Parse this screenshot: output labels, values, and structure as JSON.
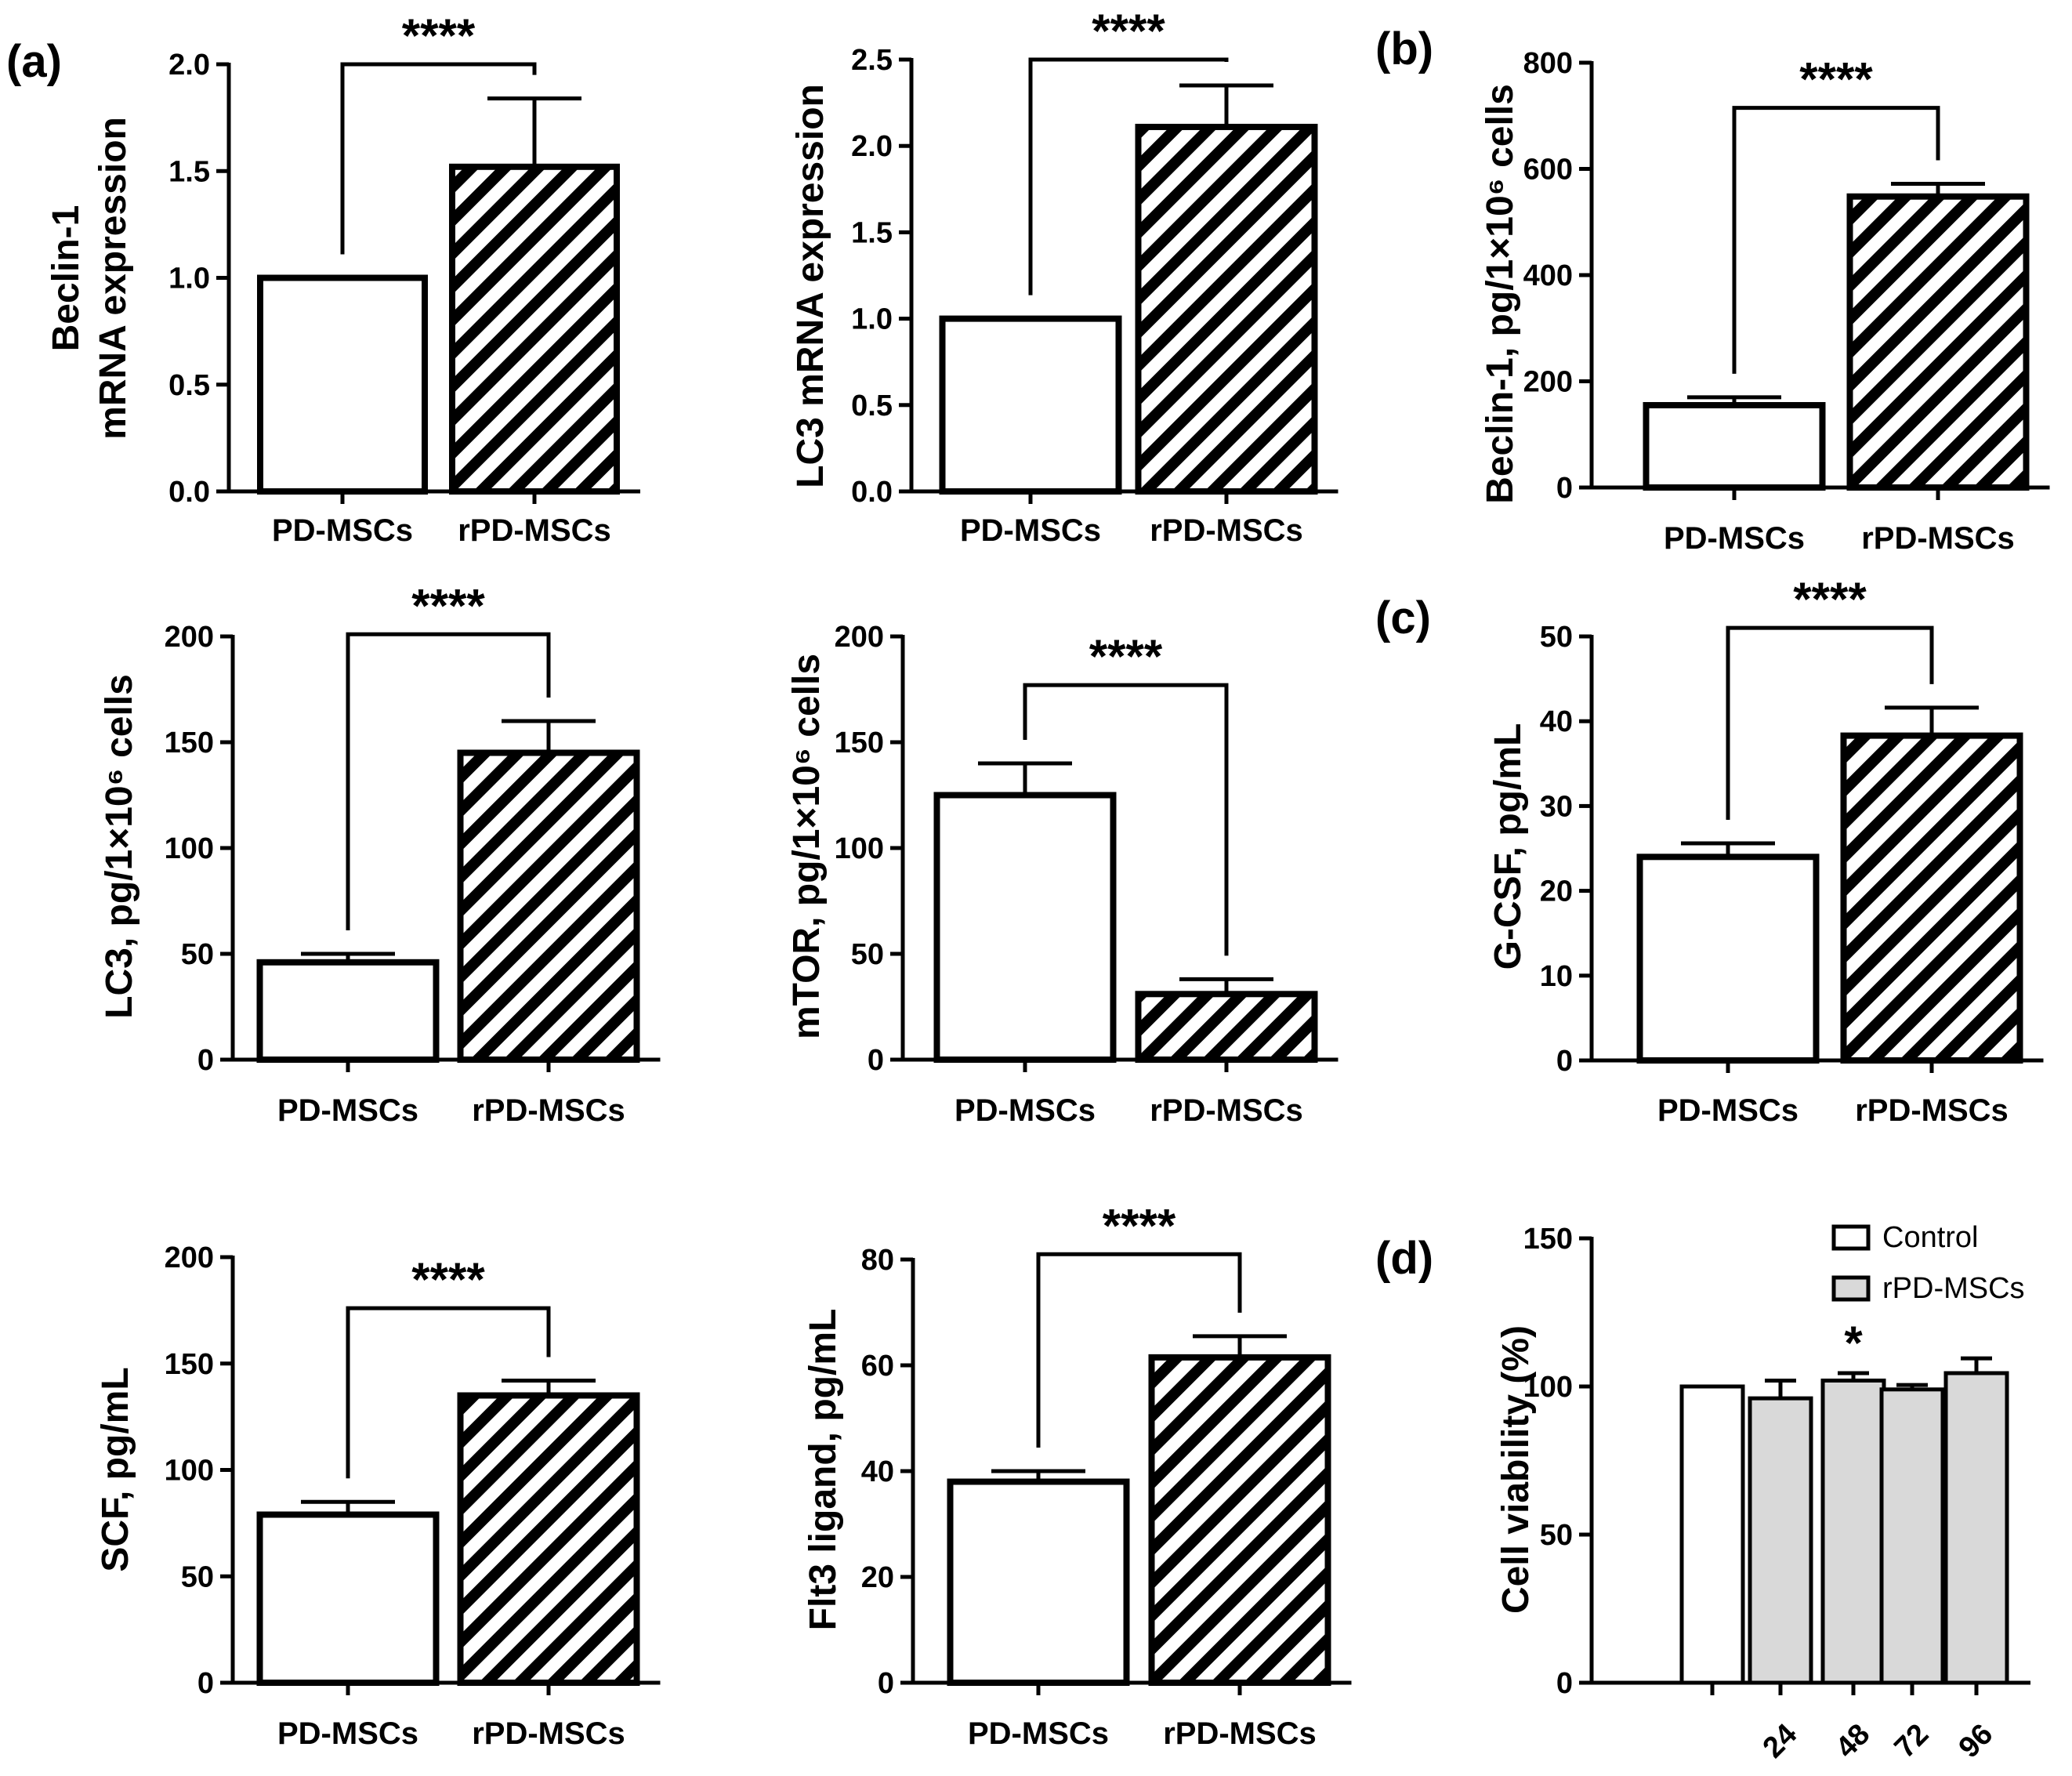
{
  "colors": {
    "axis": "#000000",
    "fill_control": "#ffffff",
    "fill_treated": "#d9d9d9",
    "hatch": "#000000"
  },
  "panels": [
    {
      "label": "(a)"
    },
    {
      "label": "(b)"
    },
    {
      "label": "(c)"
    },
    {
      "label": "(d)"
    }
  ],
  "chart_data": [
    {
      "id": "beclin1-mrna",
      "panel": "(a)",
      "type": "bar",
      "ylabel": [
        "Beclin-1",
        "mRNA expression"
      ],
      "ylim": [
        0,
        2.0
      ],
      "ticks": [
        0.0,
        0.5,
        1.0,
        1.5,
        2.0
      ],
      "tick_labels": [
        "0.0",
        "0.5",
        "1.0",
        "1.5",
        "2.0"
      ],
      "categories": [
        "PD-MSCs",
        "rPD-MSCs"
      ],
      "values": [
        1.0,
        1.52
      ],
      "errors": [
        0,
        0.32
      ],
      "significance": {
        "label": "****",
        "level": 2.0
      }
    },
    {
      "id": "lc3-mrna",
      "panel": "(a)",
      "type": "bar",
      "ylabel": [
        "LC3 mRNA expression"
      ],
      "ylim": [
        0,
        2.5
      ],
      "ticks": [
        0.0,
        0.5,
        1.0,
        1.5,
        2.0,
        2.5
      ],
      "tick_labels": [
        "0.0",
        "0.5",
        "1.0",
        "1.5",
        "2.0",
        "2.5"
      ],
      "categories": [
        "PD-MSCs",
        "rPD-MSCs"
      ],
      "values": [
        1.0,
        2.11
      ],
      "errors": [
        0,
        0.24
      ],
      "significance": {
        "label": "****",
        "level": 2.5
      }
    },
    {
      "id": "beclin1-protein",
      "panel": "(b)",
      "type": "bar",
      "ylabel": [
        "Beclin-1, pg/1×10⁶ cells"
      ],
      "ylim": [
        0,
        800
      ],
      "ticks": [
        0,
        200,
        400,
        600,
        800
      ],
      "tick_labels": [
        "0",
        "200",
        "400",
        "600",
        "800"
      ],
      "categories": [
        "PD-MSCs",
        "rPD-MSCs"
      ],
      "values": [
        155,
        548
      ],
      "errors": [
        15,
        24
      ],
      "significance": {
        "label": "****",
        "level": 715
      }
    },
    {
      "id": "lc3-protein",
      "panel": "(b)",
      "type": "bar",
      "ylabel": [
        "LC3, pg/1×10⁶ cells"
      ],
      "ylim": [
        0,
        200
      ],
      "ticks": [
        0,
        50,
        100,
        150,
        200
      ],
      "tick_labels": [
        "0",
        "50",
        "100",
        "150",
        "200"
      ],
      "categories": [
        "PD-MSCs",
        "rPD-MSCs"
      ],
      "values": [
        46,
        145
      ],
      "errors": [
        4,
        15
      ],
      "significance": {
        "label": "****",
        "level": 201
      }
    },
    {
      "id": "mtor-protein",
      "panel": "(b)",
      "type": "bar",
      "ylabel": [
        "mTOR, pg/1×10⁶ cells"
      ],
      "ylim": [
        0,
        200
      ],
      "ticks": [
        0,
        50,
        100,
        150,
        200
      ],
      "tick_labels": [
        "0",
        "50",
        "100",
        "150",
        "200"
      ],
      "categories": [
        "PD-MSCs",
        "rPD-MSCs"
      ],
      "values": [
        125,
        31
      ],
      "errors": [
        15,
        7
      ],
      "significance": {
        "label": "****",
        "level": 177
      }
    },
    {
      "id": "gcsf",
      "panel": "(c)",
      "type": "bar",
      "ylabel": [
        "G-CSF, pg/mL"
      ],
      "ylim": [
        0,
        50
      ],
      "ticks": [
        0,
        10,
        20,
        30,
        40,
        50
      ],
      "tick_labels": [
        "0",
        "10",
        "20",
        "30",
        "40",
        "50"
      ],
      "categories": [
        "PD-MSCs",
        "rPD-MSCs"
      ],
      "values": [
        24,
        38.3
      ],
      "errors": [
        1.6,
        3.3
      ],
      "significance": {
        "label": "****",
        "level": 51
      }
    },
    {
      "id": "scf",
      "panel": "(c)",
      "type": "bar",
      "ylabel": [
        "SCF, pg/mL"
      ],
      "ylim": [
        0,
        200
      ],
      "ticks": [
        0,
        50,
        100,
        150,
        200
      ],
      "tick_labels": [
        "0",
        "50",
        "100",
        "150",
        "200"
      ],
      "categories": [
        "PD-MSCs",
        "rPD-MSCs"
      ],
      "values": [
        79,
        135
      ],
      "errors": [
        6,
        7
      ],
      "significance": {
        "label": "****",
        "level": 176
      }
    },
    {
      "id": "flt3",
      "panel": "(c)",
      "type": "bar",
      "ylabel": [
        "Flt3 ligand, pg/mL"
      ],
      "ylim": [
        0,
        80
      ],
      "ticks": [
        0,
        20,
        40,
        60,
        80
      ],
      "tick_labels": [
        "0",
        "20",
        "40",
        "60",
        "80"
      ],
      "categories": [
        "PD-MSCs",
        "rPD-MSCs"
      ],
      "values": [
        38,
        61.5
      ],
      "errors": [
        2,
        4
      ],
      "significance": {
        "label": "****",
        "level": 81
      }
    },
    {
      "id": "viability",
      "panel": "(d)",
      "type": "bar",
      "ylabel": [
        "Cell viability (%)"
      ],
      "ylim": [
        0,
        150
      ],
      "ticks": [
        0,
        50,
        100,
        150
      ],
      "tick_labels": [
        "0",
        "50",
        "100",
        "150"
      ],
      "categories": [
        "",
        "24",
        "48",
        "72",
        "96"
      ],
      "values": [
        100,
        96,
        102,
        99,
        104.5
      ],
      "errors": [
        0,
        6,
        2.5,
        1.5,
        5
      ],
      "series_of_bar": [
        "Control",
        "rPD-MSCs",
        "rPD-MSCs",
        "rPD-MSCs",
        "rPD-MSCs"
      ],
      "annotations": [
        {
          "category": "48",
          "label": "*"
        }
      ],
      "legend": {
        "position": "top-right",
        "entries": [
          "Control",
          "rPD-MSCs"
        ]
      }
    }
  ]
}
